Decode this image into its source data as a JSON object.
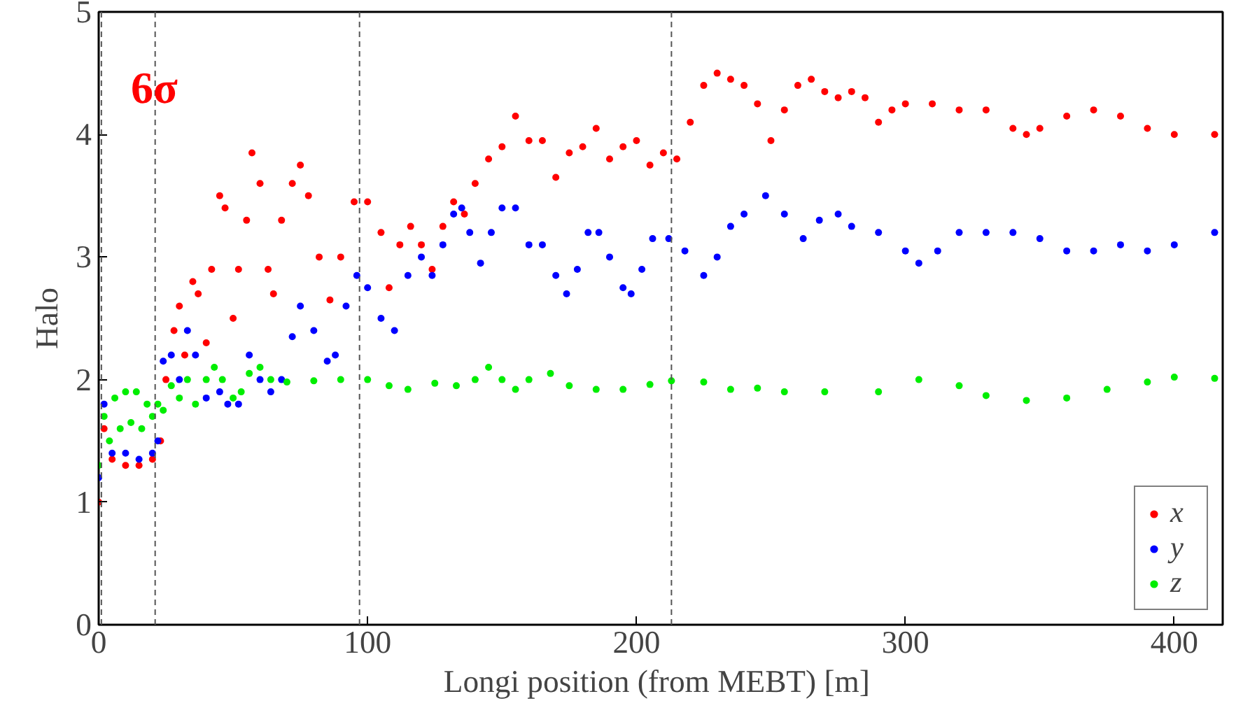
{
  "chart_data": {
    "type": "scatter",
    "xlabel": "Longi position (from MEBT)  [m]",
    "ylabel": "Halo",
    "annotations": [
      "6σ"
    ],
    "xlim": [
      0,
      418
    ],
    "ylim": [
      0,
      5
    ],
    "xticks": [
      0,
      100,
      200,
      300,
      400
    ],
    "yticks": [
      0,
      1,
      2,
      3,
      4,
      5
    ],
    "grid": false,
    "legend": "bottom right",
    "marker": "circle",
    "ref_lines": [
      {
        "axis": "x",
        "value": 1,
        "label": null,
        "color": "#555555",
        "line_style": "dashed"
      },
      {
        "axis": "x",
        "value": 21,
        "label": null,
        "color": "#555555",
        "line_style": "dashed"
      },
      {
        "axis": "x",
        "value": 97,
        "label": null,
        "color": "#555555",
        "line_style": "dashed"
      },
      {
        "axis": "x",
        "value": 213,
        "label": null,
        "color": "#555555",
        "line_style": "dashed"
      }
    ],
    "series": [
      {
        "name": "x",
        "color": "#ff0000",
        "x": [
          0,
          2,
          5,
          10,
          15,
          20,
          23,
          25,
          28,
          30,
          32,
          35,
          37,
          40,
          42,
          45,
          47,
          50,
          52,
          55,
          57,
          60,
          63,
          65,
          68,
          72,
          75,
          78,
          82,
          86,
          90,
          95,
          100,
          105,
          108,
          112,
          116,
          120,
          124,
          128,
          132,
          136,
          140,
          145,
          150,
          155,
          160,
          165,
          170,
          175,
          180,
          185,
          190,
          195,
          200,
          205,
          210,
          215,
          220,
          225,
          230,
          235,
          240,
          245,
          250,
          255,
          260,
          265,
          270,
          275,
          280,
          285,
          290,
          295,
          300,
          310,
          320,
          330,
          340,
          345,
          350,
          360,
          370,
          380,
          390,
          400,
          415
        ],
        "values": [
          1.0,
          1.6,
          1.35,
          1.3,
          1.3,
          1.35,
          1.5,
          2.0,
          2.4,
          2.6,
          2.2,
          2.8,
          2.7,
          2.3,
          2.9,
          3.5,
          3.4,
          2.5,
          2.9,
          3.3,
          3.85,
          3.6,
          2.9,
          2.7,
          3.3,
          3.6,
          3.75,
          3.5,
          3.0,
          2.65,
          3.0,
          3.45,
          3.45,
          3.2,
          2.75,
          3.1,
          3.25,
          3.1,
          2.9,
          3.25,
          3.45,
          3.35,
          3.6,
          3.8,
          3.9,
          4.15,
          3.95,
          3.95,
          3.65,
          3.85,
          3.9,
          4.05,
          3.8,
          3.9,
          3.95,
          3.75,
          3.85,
          3.8,
          4.1,
          4.4,
          4.5,
          4.45,
          4.4,
          4.25,
          3.95,
          4.2,
          4.4,
          4.45,
          4.35,
          4.3,
          4.35,
          4.3,
          4.1,
          4.2,
          4.25,
          4.25,
          4.2,
          4.2,
          4.05,
          4.0,
          4.05,
          4.15,
          4.2,
          4.15,
          4.05,
          4.0,
          4.0
        ]
      },
      {
        "name": "y",
        "color": "#0000ff",
        "x": [
          0,
          2,
          5,
          10,
          15,
          20,
          22,
          24,
          27,
          30,
          33,
          36,
          40,
          45,
          48,
          52,
          56,
          60,
          64,
          68,
          72,
          75,
          80,
          85,
          88,
          92,
          96,
          100,
          105,
          110,
          115,
          120,
          124,
          128,
          132,
          135,
          138,
          142,
          146,
          150,
          155,
          160,
          165,
          170,
          174,
          178,
          182,
          186,
          190,
          195,
          198,
          202,
          206,
          212,
          218,
          225,
          230,
          235,
          240,
          248,
          255,
          262,
          268,
          275,
          280,
          290,
          300,
          305,
          312,
          320,
          330,
          340,
          350,
          360,
          370,
          380,
          390,
          400,
          415
        ],
        "values": [
          1.2,
          1.8,
          1.4,
          1.4,
          1.35,
          1.4,
          1.5,
          2.15,
          2.2,
          2.0,
          2.4,
          2.2,
          1.85,
          1.9,
          1.8,
          1.8,
          2.2,
          2.0,
          1.9,
          2.0,
          2.35,
          2.6,
          2.4,
          2.15,
          2.2,
          2.6,
          2.85,
          2.75,
          2.5,
          2.4,
          2.85,
          3.0,
          2.85,
          3.1,
          3.35,
          3.4,
          3.2,
          2.95,
          3.2,
          3.4,
          3.4,
          3.1,
          3.1,
          2.85,
          2.7,
          2.9,
          3.2,
          3.2,
          3.0,
          2.75,
          2.7,
          2.9,
          3.15,
          3.15,
          3.05,
          2.85,
          3.0,
          3.25,
          3.35,
          3.5,
          3.35,
          3.15,
          3.3,
          3.35,
          3.25,
          3.2,
          3.05,
          2.95,
          3.05,
          3.2,
          3.2,
          3.2,
          3.15,
          3.05,
          3.05,
          3.1,
          3.05,
          3.1,
          3.2
        ]
      },
      {
        "name": "z",
        "color": "#00ee00",
        "x": [
          0,
          2,
          4,
          6,
          8,
          10,
          12,
          14,
          16,
          18,
          20,
          22,
          24,
          27,
          30,
          33,
          36,
          40,
          43,
          46,
          50,
          53,
          56,
          60,
          64,
          70,
          80,
          90,
          100,
          108,
          115,
          125,
          133,
          140,
          145,
          150,
          155,
          160,
          168,
          175,
          185,
          195,
          205,
          213,
          225,
          235,
          245,
          255,
          270,
          290,
          305,
          320,
          330,
          345,
          360,
          375,
          390,
          400,
          415
        ],
        "values": [
          1.3,
          1.7,
          1.5,
          1.85,
          1.6,
          1.9,
          1.65,
          1.9,
          1.6,
          1.8,
          1.7,
          1.8,
          1.75,
          1.95,
          1.85,
          2.0,
          1.8,
          2.0,
          2.1,
          2.0,
          1.85,
          1.9,
          2.05,
          2.1,
          2.0,
          1.98,
          1.99,
          2.0,
          2.0,
          1.95,
          1.92,
          1.97,
          1.95,
          2.0,
          2.1,
          2.0,
          1.92,
          2.0,
          2.05,
          1.95,
          1.92,
          1.92,
          1.96,
          1.99,
          1.98,
          1.92,
          1.93,
          1.9,
          1.9,
          1.9,
          2.0,
          1.95,
          1.87,
          1.83,
          1.85,
          1.92,
          1.98,
          2.02,
          2.01
        ]
      }
    ]
  }
}
